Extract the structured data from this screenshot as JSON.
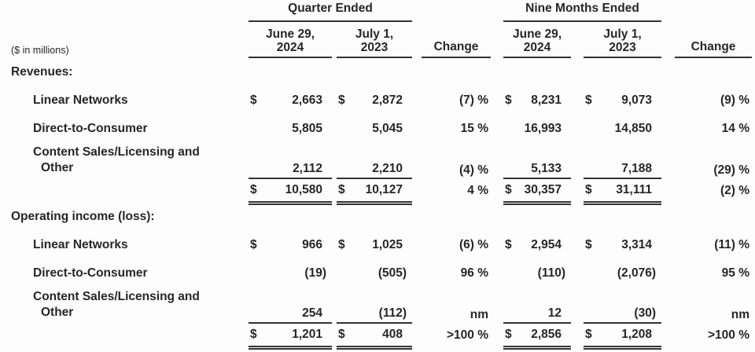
{
  "meta": {
    "units_label": "($ in millions)"
  },
  "header": {
    "quarter_group": "Quarter Ended",
    "nine_group": "Nine Months Ended",
    "date1_line1": "June 29,",
    "date1_line2": "2024",
    "date2_line1": "July 1,",
    "date2_line2": "2023",
    "change_label": "Change"
  },
  "rows": [
    {
      "label": "Revenues:"
    },
    {
      "label": "Linear Networks",
      "q1_cur": "$",
      "q1": "2,663",
      "q2_cur": "$",
      "q2": "2,872",
      "chg1": "(7) %",
      "n1_cur": "$",
      "n1": "8,231",
      "n2_cur": "$",
      "n2": "9,073",
      "chg2": "(9) %"
    },
    {
      "label": "Direct-to-Consumer",
      "q1_cur": "",
      "q1": "5,805",
      "q2_cur": "",
      "q2": "5,045",
      "chg1": "15 %",
      "n1_cur": "",
      "n1": "16,993",
      "n2_cur": "",
      "n2": "14,850",
      "chg2": "14 %"
    },
    {
      "label": "Content Sales/Licensing and",
      "label2": "Other",
      "q1_cur": "",
      "q1": "2,112",
      "q2_cur": "",
      "q2": "2,210",
      "chg1": "(4) %",
      "n1_cur": "",
      "n1": "5,133",
      "n2_cur": "",
      "n2": "7,188",
      "chg2": "(29) %"
    },
    {
      "label": "",
      "q1_cur": "$",
      "q1": "10,580",
      "q2_cur": "$",
      "q2": "10,127",
      "chg1": "4 %",
      "n1_cur": "$",
      "n1": "30,357",
      "n2_cur": "$",
      "n2": "31,111",
      "chg2": "(2) %"
    },
    {
      "label": "Operating income (loss):"
    },
    {
      "label": "Linear Networks",
      "q1_cur": "$",
      "q1": "966",
      "q2_cur": "$",
      "q2": "1,025",
      "chg1": "(6) %",
      "n1_cur": "$",
      "n1": "2,954",
      "n2_cur": "$",
      "n2": "3,314",
      "chg2": "(11) %"
    },
    {
      "label": "Direct-to-Consumer",
      "q1_cur": "",
      "q1": "(19)",
      "q2_cur": "",
      "q2": "(505)",
      "chg1": "96 %",
      "n1_cur": "",
      "n1": "(110)",
      "n2_cur": "",
      "n2": "(2,076)",
      "chg2": "95 %"
    },
    {
      "label": "Content Sales/Licensing and",
      "label2": "Other",
      "q1_cur": "",
      "q1": "254",
      "q2_cur": "",
      "q2": "(112)",
      "chg1": "nm",
      "n1_cur": "",
      "n1": "12",
      "n2_cur": "",
      "n2": "(30)",
      "chg2": "nm"
    },
    {
      "label": "",
      "q1_cur": "$",
      "q1": "1,201",
      "q2_cur": "$",
      "q2": "408",
      "chg1": ">100 %",
      "n1_cur": "$",
      "n1": "2,856",
      "n2_cur": "$",
      "n2": "1,208",
      "chg2": ">100 %"
    }
  ],
  "colors": {
    "text": "#262626",
    "rule": "#333333",
    "background": "#fdfdfd"
  }
}
